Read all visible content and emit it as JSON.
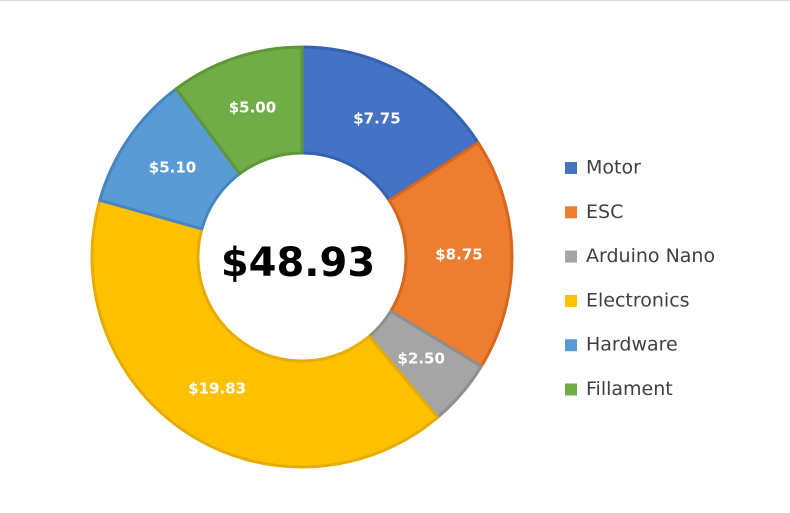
{
  "chart_data": {
    "type": "pie",
    "variant": "doughnut",
    "title": "",
    "center_label": "$48.93",
    "legend_position": "right",
    "start_angle_deg": 0,
    "direction": "clockwise",
    "series": [
      {
        "name": "Motor",
        "value": 7.75,
        "label": "$7.75",
        "color": "#4472C4",
        "stroke": "#3461B0"
      },
      {
        "name": "ESC",
        "value": 8.75,
        "label": "$8.75",
        "color": "#ED7D31",
        "stroke": "#D8661B"
      },
      {
        "name": "Arduino Nano",
        "value": 2.5,
        "label": "$2.50",
        "color": "#A5A5A5",
        "stroke": "#8E8E8E"
      },
      {
        "name": "Electronics",
        "value": 19.83,
        "label": "$19.83",
        "color": "#FFC000",
        "stroke": "#E6AC00"
      },
      {
        "name": "Hardware",
        "value": 5.1,
        "label": "$5.10",
        "color": "#5B9BD5",
        "stroke": "#4585C0"
      },
      {
        "name": "Fillament",
        "value": 5.0,
        "label": "$5.00",
        "color": "#70AD47",
        "stroke": "#5D9737"
      }
    ]
  }
}
